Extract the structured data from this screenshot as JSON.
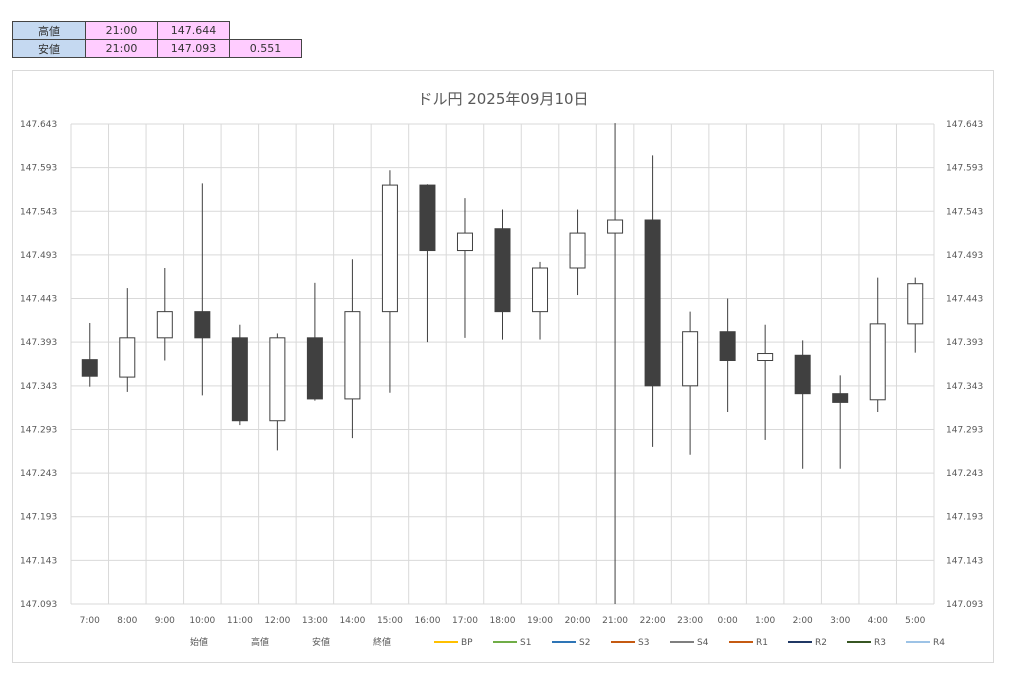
{
  "summary": {
    "rows": [
      {
        "label": "高値",
        "time": "21:00",
        "price": "147.644",
        "range": ""
      },
      {
        "label": "安値",
        "time": "21:00",
        "price": "147.093",
        "range": "0.551"
      }
    ]
  },
  "chart_data": {
    "type": "candlestick",
    "title": "ドル円 2025年09月10日",
    "ylim": [
      147.093,
      147.643
    ],
    "y_ticks": [
      "147.643",
      "147.593",
      "147.543",
      "147.493",
      "147.443",
      "147.393",
      "147.343",
      "147.293",
      "147.243",
      "147.193",
      "147.143",
      "147.093"
    ],
    "grid": true,
    "legend_position": "bottom",
    "categories": [
      "7:00",
      "8:00",
      "9:00",
      "10:00",
      "11:00",
      "12:00",
      "13:00",
      "14:00",
      "15:00",
      "16:00",
      "17:00",
      "18:00",
      "19:00",
      "20:00",
      "21:00",
      "22:00",
      "23:00",
      "0:00",
      "1:00",
      "2:00",
      "3:00",
      "4:00",
      "5:00"
    ],
    "open": [
      147.373,
      147.353,
      147.398,
      147.428,
      147.398,
      147.303,
      147.398,
      147.328,
      147.428,
      147.573,
      147.498,
      147.523,
      147.428,
      147.478,
      147.518,
      147.533,
      147.343,
      147.405,
      147.372,
      147.378,
      147.334,
      147.327,
      147.414
    ],
    "high": [
      147.415,
      147.455,
      147.478,
      147.575,
      147.413,
      147.403,
      147.461,
      147.488,
      147.59,
      147.574,
      147.558,
      147.545,
      147.485,
      147.545,
      147.644,
      147.607,
      147.428,
      147.443,
      147.413,
      147.395,
      147.355,
      147.467,
      147.467
    ],
    "low": [
      147.342,
      147.336,
      147.372,
      147.332,
      147.298,
      147.269,
      147.326,
      147.283,
      147.335,
      147.393,
      147.398,
      147.396,
      147.396,
      147.447,
      147.093,
      147.273,
      147.264,
      147.313,
      147.281,
      147.248,
      147.248,
      147.313,
      147.381
    ],
    "close": [
      147.354,
      147.398,
      147.428,
      147.398,
      147.303,
      147.398,
      147.328,
      147.428,
      147.573,
      147.498,
      147.518,
      147.428,
      147.478,
      147.518,
      147.533,
      147.343,
      147.405,
      147.372,
      147.38,
      147.334,
      147.324,
      147.414,
      147.46
    ],
    "colors": {
      "up": "#ffffff",
      "down": "#404040",
      "outline": "#404040",
      "grid": "#d9d9d9"
    },
    "legend": [
      {
        "label": "始値",
        "color": ""
      },
      {
        "label": "高値",
        "color": ""
      },
      {
        "label": "安値",
        "color": ""
      },
      {
        "label": "終値",
        "color": ""
      },
      {
        "label": "BP",
        "color": "#ffc000"
      },
      {
        "label": "S1",
        "color": "#70ad47"
      },
      {
        "label": "S2",
        "color": "#2e75b6"
      },
      {
        "label": "S3",
        "color": "#c55a11"
      },
      {
        "label": "S4",
        "color": "#7f7f7f"
      },
      {
        "label": "R1",
        "color": "#c55a11"
      },
      {
        "label": "R2",
        "color": "#203864"
      },
      {
        "label": "R3",
        "color": "#375623"
      },
      {
        "label": "R4",
        "color": "#9dc3e6"
      }
    ]
  }
}
